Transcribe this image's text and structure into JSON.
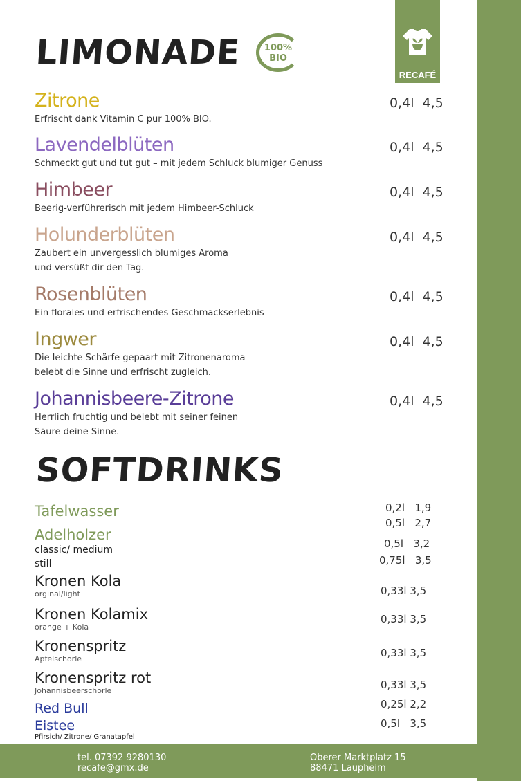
{
  "brand": {
    "name": "RECAFÉ",
    "accent": "#7f9a5a"
  },
  "limonade": {
    "title": "LIMONADE",
    "badge_line1": "100%",
    "badge_line2": "BIO",
    "items": [
      {
        "name": "Zitrone",
        "color": "#d4b21c",
        "desc": "Erfrischt dank Vitamin C pur 100% BIO.",
        "size": "0,4l",
        "price": "4,5"
      },
      {
        "name": "Lavendelblüten",
        "color": "#8c68c0",
        "desc": "Schmeckt gut und tut gut – mit jedem Schluck blumiger Genuss",
        "size": "0,4l",
        "price": "4,5"
      },
      {
        "name": "Himbeer",
        "color": "#8a4e60",
        "desc": "Beerig-verführerisch mit jedem Himbeer-Schluck",
        "size": "0,4l",
        "price": "4,5"
      },
      {
        "name": "Holunderblüten",
        "color": "#c9a58e",
        "desc": "Zaubert ein unvergesslich blumiges Aroma",
        "desc2": "und versüßt dir den Tag.",
        "size": "0,4l",
        "price": "4,5"
      },
      {
        "name": "Rosenblüten",
        "color": "#a47a68",
        "desc": "Ein florales und erfrischendes Geschmackserlebnis",
        "size": "0,4l",
        "price": "4,5"
      },
      {
        "name": "Ingwer",
        "color": "#9c8a3e",
        "desc": "Die leichte Schärfe gepaart mit Zitronenaroma",
        "desc2": "belebt die Sinne und erfrischt zugleich.",
        "size": "0,4l",
        "price": "4,5"
      },
      {
        "name": "Johannisbeere-Zitrone",
        "color": "#5a3e98",
        "desc": "Herrlich fruchtig und belebt mit seiner feinen",
        "desc2": "Säure deine Sinne.",
        "size": "0,4l",
        "price": "4,5"
      }
    ]
  },
  "softdrinks": {
    "title": "SOFTDRINKS",
    "tafelwasser": {
      "name": "Tafelwasser",
      "p1": "0,2l   1,9",
      "p2": "0,5l   2,7"
    },
    "adelholzer": {
      "name": "Adelholzer",
      "d1": "classic/ medium",
      "d2": "still",
      "p1": "0,5l   3,2",
      "p2": "0,75l   3,5"
    },
    "kola": {
      "name": "Kronen Kola",
      "desc": "orginal/light",
      "price": "0,33l 3,5"
    },
    "kolamix": {
      "name": "Kronen Kolamix",
      "desc": "orange + Kola",
      "price": "0,33l 3,5"
    },
    "spritz": {
      "name": "Kronenspritz",
      "desc": "Apfelschorle",
      "price": "0,33l 3,5"
    },
    "spritzrot": {
      "name": "Kronenspritz rot",
      "desc": "Johannisbeerschorle",
      "price": "0,33l 3,5"
    },
    "redbull": {
      "name": "Red Bull",
      "price": "0,25l 2,2"
    },
    "eistee": {
      "name": "Eistee",
      "desc": "Pfirsich/ Zitrone/ Granatapfel",
      "price": "0,5l   3,5"
    }
  },
  "footer": {
    "phone": "tel. 07392 9280130",
    "email": "recafe@gmx.de",
    "street": "Oberer Marktplatz 15",
    "city": "88471 Laupheim"
  }
}
